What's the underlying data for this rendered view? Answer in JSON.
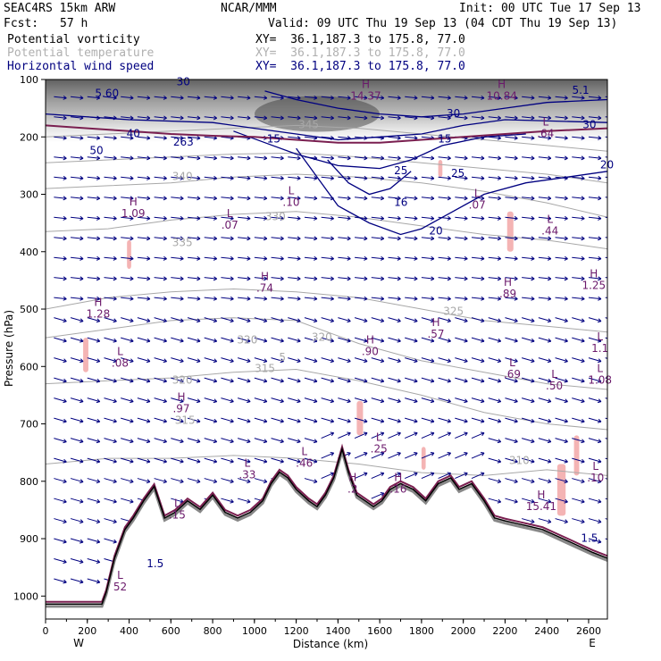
{
  "header": {
    "model": "SEAC4RS 15km ARW",
    "org": "NCAR/MMM",
    "init": "Init: 00 UTC Tue 17 Sep 13",
    "fcst_label": "Fcst:",
    "fcst_value": "57 h",
    "valid": "Valid: 09 UTC Thu 19 Sep 13 (04 CDT Thu 19 Sep 13)"
  },
  "fields": [
    {
      "name": "Potential vorticity",
      "xy": "XY=  36.1,187.3 to 175.8, 77.0",
      "color": "#000000"
    },
    {
      "name": "Potential temperature",
      "xy": "XY=  36.1,187.3 to 175.8, 77.0",
      "color": "#b0b0b0"
    },
    {
      "name": "Horizontal wind speed",
      "xy": "XY=  36.1,187.3 to 175.8, 77.0",
      "color": "#000080"
    }
  ],
  "colors": {
    "theta": "#a8a8a8",
    "wind": "#000080",
    "pv": "#7a1f50",
    "terrain": "#000000",
    "pink": "#f4b4b4",
    "labels": "#6b1a6b"
  },
  "chart_data": {
    "type": "cross-section",
    "xlabel": "Distance (km)",
    "ylabel": "Pressure (hPa)",
    "x_ticks": [
      "0",
      "200",
      "400",
      "600",
      "800",
      "1000",
      "1200",
      "1400",
      "1600",
      "1800",
      "2000",
      "2200",
      "2400",
      "2600"
    ],
    "y_ticks": [
      "100",
      "200",
      "300",
      "400",
      "500",
      "600",
      "700",
      "800",
      "900",
      "1000"
    ],
    "xlim": [
      0,
      2690
    ],
    "ylim": [
      100,
      1040
    ],
    "x_end_labels": {
      "left": "W",
      "right": "E"
    },
    "terrain": {
      "x": [
        0,
        270,
        290,
        330,
        380,
        420,
        470,
        520,
        570,
        620,
        680,
        740,
        800,
        860,
        920,
        980,
        1040,
        1080,
        1120,
        1160,
        1200,
        1260,
        1300,
        1340,
        1380,
        1420,
        1450,
        1490,
        1530,
        1570,
        1610,
        1650,
        1700,
        1760,
        1820,
        1880,
        1940,
        1980,
        2040,
        2100,
        2150,
        2200,
        2260,
        2320,
        2380,
        2440,
        2500,
        2560,
        2620,
        2690
      ],
      "p": [
        1010,
        1010,
        990,
        930,
        880,
        860,
        830,
        805,
        860,
        850,
        830,
        845,
        820,
        850,
        860,
        850,
        830,
        800,
        780,
        790,
        810,
        830,
        840,
        820,
        790,
        740,
        780,
        820,
        830,
        840,
        830,
        810,
        800,
        810,
        830,
        800,
        790,
        810,
        800,
        830,
        860,
        865,
        870,
        875,
        880,
        890,
        900,
        910,
        920,
        930
      ]
    },
    "theta_contours": [
      {
        "label": "310",
        "x": [
          0,
          300,
          600,
          900,
          1200,
          1500,
          1800,
          2100,
          2400,
          2690
        ],
        "p": [
          770,
          760,
          760,
          755,
          760,
          770,
          785,
          790,
          780,
          790
        ]
      },
      {
        "label": "315",
        "x": [
          0,
          300,
          600,
          900,
          1200,
          1500,
          1800,
          2100,
          2400,
          2690
        ],
        "p": [
          630,
          625,
          620,
          610,
          605,
          625,
          650,
          680,
          700,
          710
        ]
      },
      {
        "label": "320",
        "x": [
          0,
          300,
          600,
          900,
          1200,
          1500,
          1800,
          2100,
          2400,
          2690
        ],
        "p": [
          550,
          535,
          520,
          515,
          520,
          560,
          590,
          610,
          630,
          640
        ]
      },
      {
        "label": "325",
        "x": [
          0,
          300,
          600,
          900,
          1200,
          1500,
          1800,
          2100,
          2400,
          2690
        ],
        "p": [
          500,
          480,
          470,
          465,
          470,
          480,
          500,
          520,
          530,
          540
        ]
      },
      {
        "label": "330",
        "x": [
          0,
          300,
          600,
          900,
          1200,
          1500,
          1800,
          2100,
          2400,
          2690
        ],
        "p": [
          365,
          360,
          345,
          335,
          330,
          340,
          355,
          370,
          380,
          395
        ]
      },
      {
        "label": "335",
        "x": [
          0,
          300,
          600,
          900,
          1200,
          1500,
          1800,
          2100,
          2400,
          2690
        ],
        "p": [
          290,
          285,
          280,
          270,
          265,
          270,
          280,
          295,
          315,
          340
        ]
      },
      {
        "label": "340",
        "x": [
          0,
          300,
          600,
          900,
          1200,
          1500,
          1800,
          2100,
          2400,
          2690
        ],
        "p": [
          245,
          240,
          235,
          230,
          228,
          235,
          245,
          255,
          265,
          280
        ]
      },
      {
        "label": "345",
        "x": [
          0,
          300,
          600,
          900,
          1200,
          1500,
          1800,
          2100,
          2400,
          2690
        ],
        "p": [
          200,
          195,
          190,
          185,
          180,
          185,
          195,
          205,
          215,
          225
        ]
      }
    ],
    "wind_contours": [
      {
        "label": "10",
        "x": [
          0,
          400,
          800,
          1000,
          1200,
          1400,
          1600,
          1800,
          2000,
          2200,
          2690
        ],
        "p": [
          160,
          170,
          175,
          185,
          195,
          205,
          200,
          195,
          180,
          170,
          175
        ]
      },
      {
        "label": "15",
        "x": [
          900,
          1050,
          1200,
          1400,
          1600,
          1750,
          1900,
          2100,
          2300
        ],
        "p": [
          190,
          210,
          230,
          250,
          255,
          240,
          215,
          200,
          195
        ]
      },
      {
        "label": "20",
        "x": [
          1200,
          1300,
          1400,
          1550,
          1700,
          1800,
          1950,
          2100,
          2300,
          2500,
          2690
        ],
        "p": [
          220,
          270,
          320,
          350,
          370,
          360,
          330,
          300,
          280,
          270,
          260
        ]
      },
      {
        "label": "25",
        "x": [
          1350,
          1450,
          1550,
          1650,
          1750
        ],
        "p": [
          240,
          280,
          300,
          290,
          260
        ]
      },
      {
        "label": "30",
        "x": [
          1050,
          1200,
          1400,
          1600,
          1800,
          2000,
          2200,
          2400,
          2690
        ],
        "p": [
          120,
          135,
          150,
          160,
          165,
          160,
          150,
          140,
          135
        ]
      }
    ],
    "pv_line": {
      "x": [
        0,
        200,
        400,
        600,
        800,
        1000,
        1200,
        1400,
        1600,
        1800,
        2000,
        2200,
        2400,
        2690
      ],
      "p": [
        180,
        185,
        190,
        195,
        198,
        200,
        205,
        210,
        210,
        205,
        200,
        195,
        190,
        185
      ]
    },
    "pink_regions": [
      {
        "x": [
          390,
          410
        ],
        "p": [
          380,
          430
        ]
      },
      {
        "x": [
          180,
          205
        ],
        "p": [
          550,
          610
        ]
      },
      {
        "x": [
          1490,
          1520
        ],
        "p": [
          660,
          720
        ]
      },
      {
        "x": [
          1880,
          1900
        ],
        "p": [
          240,
          270
        ]
      },
      {
        "x": [
          2210,
          2240
        ],
        "p": [
          330,
          400
        ]
      },
      {
        "x": [
          2450,
          2490
        ],
        "p": [
          770,
          860
        ]
      },
      {
        "x": [
          2530,
          2555
        ],
        "p": [
          720,
          790
        ]
      },
      {
        "x": [
          1800,
          1820
        ],
        "p": [
          740,
          780
        ]
      }
    ],
    "extrema": [
      {
        "kind": "L",
        "value": "52",
        "x": 85,
        "p": 990
      },
      {
        "kind": "L",
        "value": ".08",
        "x": 85,
        "p": 600
      },
      {
        "kind": "H",
        "value": "1.28",
        "x": 60,
        "p": 515
      },
      {
        "kind": "L",
        "value": ".15",
        "x": 150,
        "p": 865
      },
      {
        "kind": "L",
        "value": ".07",
        "x": 210,
        "p": 360
      },
      {
        "kind": "H",
        "value": "1.09",
        "x": 100,
        "p": 340
      },
      {
        "kind": "L",
        "value": ".10",
        "x": 280,
        "p": 320
      },
      {
        "kind": "H",
        "value": ".74",
        "x": 250,
        "p": 470
      },
      {
        "kind": "L",
        "value": ".33",
        "x": 230,
        "p": 795
      },
      {
        "kind": "L",
        "value": ".46",
        "x": 295,
        "p": 775
      },
      {
        "kind": "H",
        "value": ".90",
        "x": 370,
        "p": 580
      },
      {
        "kind": "H",
        "value": ".57",
        "x": 445,
        "p": 550
      },
      {
        "kind": "H",
        "value": ".89",
        "x": 527,
        "p": 480
      },
      {
        "kind": "L",
        "value": ".25",
        "x": 380,
        "p": 750
      },
      {
        "kind": "L",
        "value": ".69",
        "x": 532,
        "p": 620
      },
      {
        "kind": "L",
        "value": ".50",
        "x": 580,
        "p": 640
      },
      {
        "kind": "H",
        "value": "15.41",
        "x": 565,
        "p": 850
      },
      {
        "kind": "L",
        "value": "1.08",
        "x": 632,
        "p": 630
      },
      {
        "kind": "H",
        "value": ".97",
        "x": 650,
        "p": 680
      },
      {
        "kind": "L",
        "value": "1.1",
        "x": 632,
        "p": 575
      },
      {
        "kind": "H",
        "value": "1.25",
        "x": 625,
        "p": 465
      },
      {
        "kind": "L",
        "value": ".44",
        "x": 575,
        "p": 370
      },
      {
        "kind": "L",
        "value": ".07",
        "x": 492,
        "p": 325
      },
      {
        "kind": "H",
        "value": "10.84",
        "x": 520,
        "p": 135
      },
      {
        "kind": "H",
        "value": "14.37",
        "x": 365,
        "p": 135
      },
      {
        "kind": "L",
        "value": ".64",
        "x": 570,
        "p": 200
      },
      {
        "kind": "L",
        "value": ".10",
        "x": 627,
        "p": 800
      },
      {
        "kind": "H",
        "value": ".2",
        "x": 350,
        "p": 820
      },
      {
        "kind": "H",
        "value": ".16",
        "x": 402,
        "p": 820
      }
    ],
    "contour_labels": [
      {
        "text": "310",
        "x": 540,
        "p": 770,
        "color": "theta"
      },
      {
        "text": "315",
        "x": 250,
        "p": 610,
        "color": "theta"
      },
      {
        "text": "315",
        "x": 668,
        "p": 700,
        "color": "theta"
      },
      {
        "text": "320",
        "x": 230,
        "p": 560,
        "color": "theta"
      },
      {
        "text": "320",
        "x": 315,
        "p": 555,
        "color": "theta"
      },
      {
        "text": "320",
        "x": 655,
        "p": 630,
        "color": "theta"
      },
      {
        "text": "325",
        "x": 465,
        "p": 510,
        "color": "theta"
      },
      {
        "text": "330",
        "x": 262,
        "p": 345,
        "color": "theta"
      },
      {
        "text": "335",
        "x": 655,
        "p": 390,
        "color": "theta"
      },
      {
        "text": "340",
        "x": 655,
        "p": 275,
        "color": "theta"
      },
      {
        "text": "345",
        "x": 300,
        "p": 185,
        "color": "theta"
      },
      {
        "text": "5",
        "x": 270,
        "p": 590,
        "color": "theta"
      },
      {
        "text": "20",
        "x": 445,
        "p": 370,
        "color": "wind"
      },
      {
        "text": "20",
        "x": 640,
        "p": 255,
        "color": "wind"
      },
      {
        "text": "25",
        "x": 405,
        "p": 265,
        "color": "wind"
      },
      {
        "text": "25",
        "x": 470,
        "p": 270,
        "color": "wind"
      },
      {
        "text": "30",
        "x": 465,
        "p": 165,
        "color": "wind"
      },
      {
        "text": "30",
        "x": 620,
        "p": 185,
        "color": "wind"
      },
      {
        "text": "30",
        "x": 660,
        "p": 110,
        "color": "wind"
      },
      {
        "text": "16",
        "x": 405,
        "p": 320,
        "color": "wind"
      },
      {
        "text": "15",
        "x": 260,
        "p": 210,
        "color": "wind"
      },
      {
        "text": "15",
        "x": 455,
        "p": 210,
        "color": "wind"
      },
      {
        "text": "1.5",
        "x": 125,
        "p": 950,
        "color": "wind"
      },
      {
        "text": "1.5",
        "x": 620,
        "p": 905,
        "color": "wind"
      },
      {
        "text": "263",
        "x": 660,
        "p": 215,
        "color": "wind"
      },
      {
        "text": "40",
        "x": 100,
        "p": 200,
        "color": "wind"
      },
      {
        "text": "50",
        "x": 58,
        "p": 230,
        "color": "wind"
      },
      {
        "text": "5.60",
        "x": 70,
        "p": 130,
        "color": "wind"
      },
      {
        "text": "5.1",
        "x": 610,
        "p": 125,
        "color": "wind"
      }
    ]
  }
}
